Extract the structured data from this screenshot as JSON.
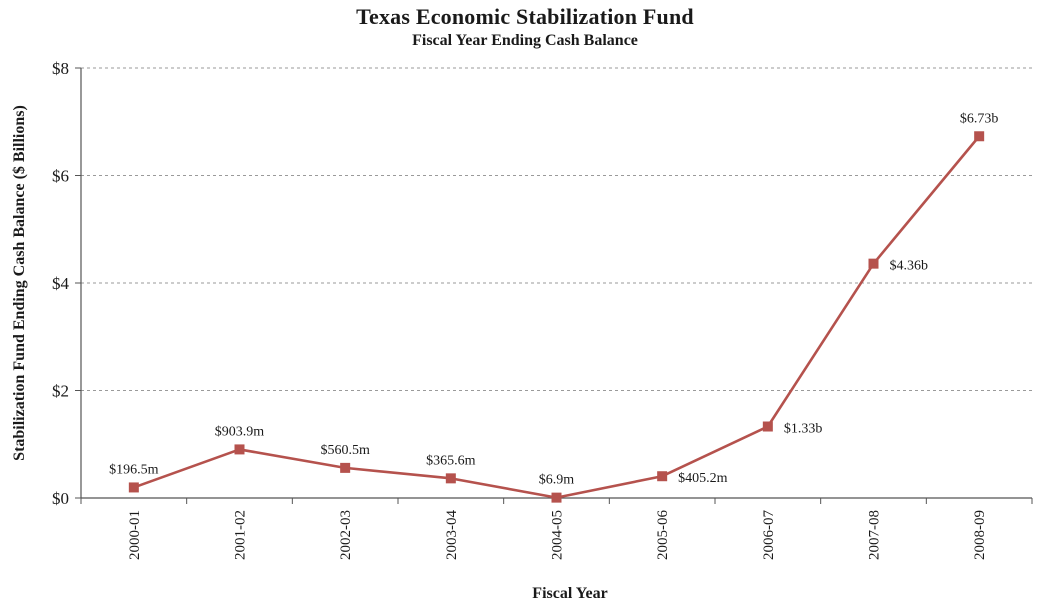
{
  "chart_data": {
    "type": "line",
    "title": "Texas Economic Stabilization Fund",
    "subtitle": "Fiscal Year Ending Cash Balance",
    "xlabel": "Fiscal Year",
    "ylabel": "Stabilization Fund Ending Cash Balance ($ Billions)",
    "categories": [
      "2000-01",
      "2001-02",
      "2002-03",
      "2003-04",
      "2004-05",
      "2005-06",
      "2006-07",
      "2007-08",
      "2008-09"
    ],
    "series": [
      {
        "values": [
          0.1965,
          0.9039,
          0.5605,
          0.3656,
          0.0069,
          0.4052,
          1.33,
          4.36,
          6.73
        ],
        "data_labels": [
          "$196.5m",
          "$903.9m",
          "$560.5m",
          "$365.6m",
          "$6.9m",
          "$405.2m",
          "$1.33b",
          "$4.36b",
          "$6.73b"
        ],
        "color": "#b5524d"
      }
    ],
    "ylim": [
      0,
      8
    ],
    "yticks": [
      0,
      2,
      4,
      6,
      8
    ],
    "ytick_labels": [
      "$0",
      "$2",
      "$4",
      "$6",
      "$8"
    ],
    "grid": "horizontal dashed",
    "legend": "none"
  }
}
